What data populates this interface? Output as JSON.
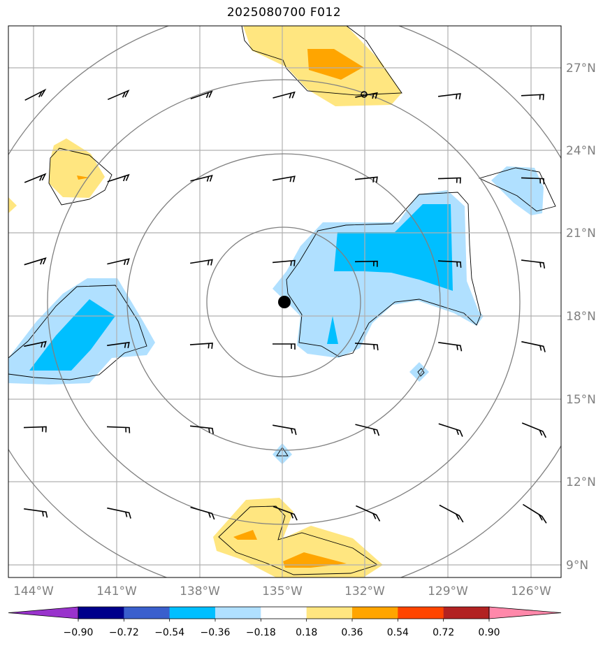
{
  "title": "2025080700 F012",
  "map": {
    "lat_labels": [
      "27°N",
      "24°N",
      "21°N",
      "18°N",
      "15°N",
      "12°N",
      "9°N"
    ],
    "lon_labels": [
      "144°W",
      "141°W",
      "138°W",
      "135°W",
      "132°W",
      "129°W",
      "126°W"
    ],
    "storm_center": {
      "lon": -135.0,
      "lat": 18.5
    },
    "range_rings": "concentric rings centered on storm",
    "wind_barbs": "regular grid, every 3 degrees"
  },
  "colorbar": {
    "ticks": [
      "−0.90",
      "−0.72",
      "−0.54",
      "−0.36",
      "−0.18",
      "0.18",
      "0.36",
      "0.54",
      "0.72",
      "0.90"
    ],
    "colors": [
      "#9933cc",
      "#00008b",
      "#3a5fcd",
      "#00bfff",
      "#b0e0ff",
      "#ffffff",
      "#ffe680",
      "#ffa500",
      "#ff4500",
      "#b22222",
      "#ff88aa"
    ]
  },
  "colors": {
    "light_blue": "#b0e0ff",
    "deep_sky_blue": "#00bfff",
    "light_yellow": "#ffe680",
    "orange": "#ffa500",
    "grid": "#b0b0b0",
    "rings": "#808080"
  }
}
